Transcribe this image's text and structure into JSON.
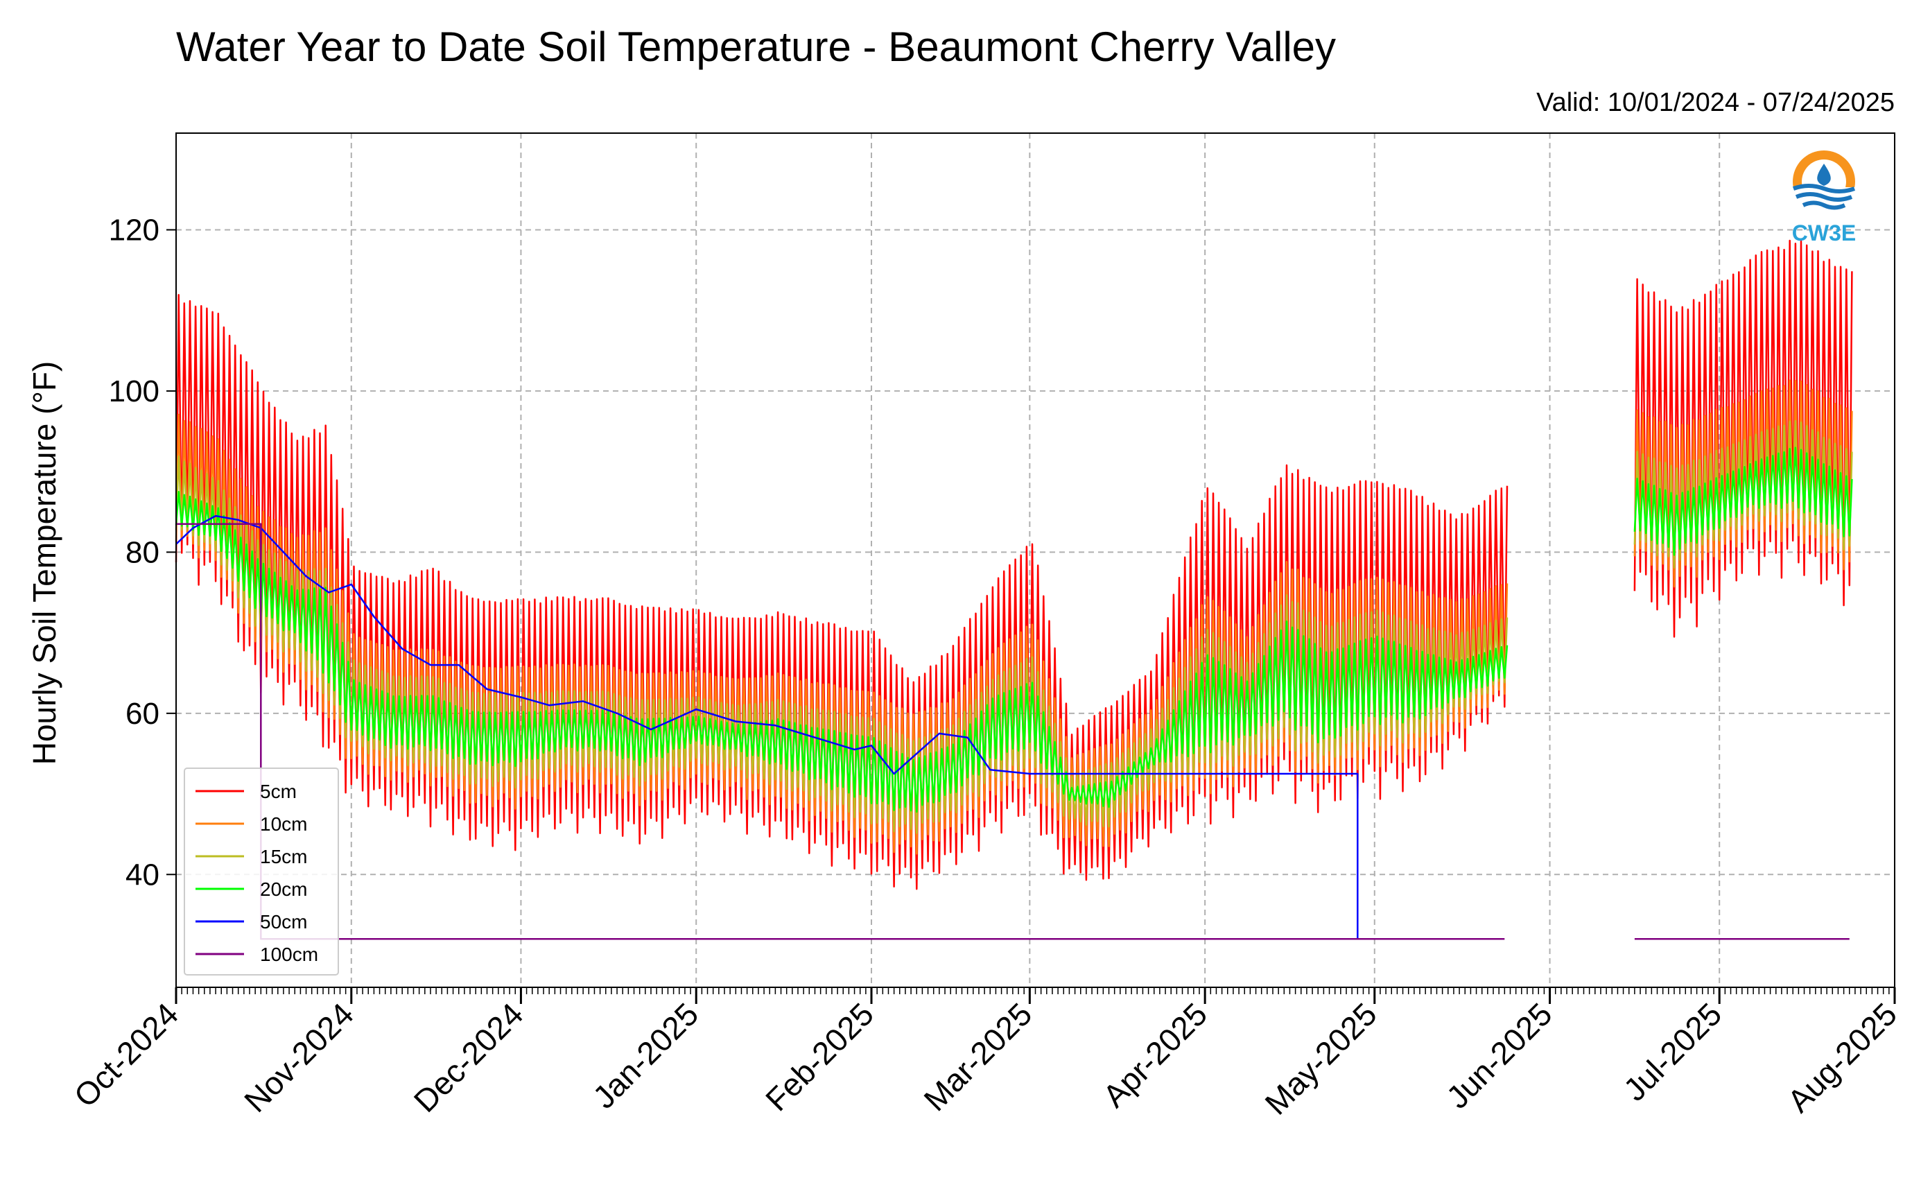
{
  "chart_data": {
    "type": "line",
    "title": "Water Year to Date Soil Temperature - Beaumont Cherry Valley",
    "subtitle": "Valid: 10/01/2024 - 07/24/2025",
    "xlabel": "",
    "ylabel": "Hourly Soil Temperature (°F)",
    "ylim": [
      26,
      132
    ],
    "xlim": [
      "2024-10-01",
      "2025-08-01"
    ],
    "yticks": [
      40,
      60,
      80,
      100,
      120
    ],
    "ytick_labels": [
      "40",
      "60",
      "80",
      "100",
      "120"
    ],
    "xtick_dates": [
      "2024-10-01",
      "2024-11-01",
      "2024-12-01",
      "2025-01-01",
      "2025-02-01",
      "2025-03-01",
      "2025-04-01",
      "2025-05-01",
      "2025-06-01",
      "2025-07-01",
      "2025-08-01"
    ],
    "xtick_labels": [
      "Oct-2024",
      "Nov-2024",
      "Dec-2024",
      "Jan-2025",
      "Feb-2025",
      "Mar-2025",
      "Apr-2025",
      "May-2025",
      "Jun-2025",
      "Jul-2025",
      "Aug-2025"
    ],
    "grid": true,
    "legend_position": "lower-left",
    "series": [
      {
        "name": "5cm",
        "color": "#ff0000",
        "segments": [
          {
            "start": "2024-10-01",
            "end": "2025-05-24",
            "dates": [
              "2024-10-01",
              "2024-10-08",
              "2024-10-15",
              "2024-10-22",
              "2024-10-27",
              "2024-11-01",
              "2024-11-08",
              "2024-11-15",
              "2024-11-22",
              "2024-12-01",
              "2024-12-08",
              "2024-12-15",
              "2024-12-22",
              "2025-01-01",
              "2025-01-08",
              "2025-01-15",
              "2025-01-22",
              "2025-02-01",
              "2025-02-08",
              "2025-02-15",
              "2025-02-22",
              "2025-03-01",
              "2025-03-08",
              "2025-03-15",
              "2025-03-22",
              "2025-04-01",
              "2025-04-08",
              "2025-04-15",
              "2025-04-22",
              "2025-05-01",
              "2025-05-08",
              "2025-05-15",
              "2025-05-24"
            ],
            "high": [
              116,
              114,
              106,
              98,
              101,
              82,
              80,
              82,
              78,
              78,
              78,
              78,
              77,
              76,
              75,
              76,
              75,
              74,
              67,
              72,
              80,
              86,
              60,
              64,
              68,
              94,
              85,
              96,
              93,
              94,
              92,
              88,
              92
            ],
            "low": [
              76,
              72,
              60,
              58,
              52,
              47,
              45,
              44,
              41,
              41,
              43,
              43,
              41,
              45,
              44,
              42,
              40,
              37,
              36,
              38,
              42,
              44,
              38,
              37,
              42,
              43,
              45,
              47,
              44,
              47,
              47,
              52,
              58
            ]
          },
          {
            "start": "2025-06-16",
            "end": "2025-07-24",
            "dates": [
              "2025-06-16",
              "2025-06-23",
              "2025-06-30",
              "2025-07-07",
              "2025-07-14",
              "2025-07-24"
            ],
            "high": [
              119,
              115,
              118,
              122,
              124,
              120
            ],
            "low": [
              72,
              66,
              70,
              74,
              74,
              70
            ]
          }
        ]
      },
      {
        "name": "10cm",
        "color": "#ff7f0e",
        "segments": [
          {
            "start": "2024-10-01",
            "end": "2025-05-24",
            "dates": [
              "2024-10-01",
              "2024-10-08",
              "2024-10-15",
              "2024-10-22",
              "2024-10-27",
              "2024-11-01",
              "2024-11-08",
              "2024-11-15",
              "2024-11-22",
              "2024-12-01",
              "2024-12-08",
              "2024-12-15",
              "2024-12-22",
              "2025-01-01",
              "2025-01-08",
              "2025-01-15",
              "2025-01-22",
              "2025-02-01",
              "2025-02-08",
              "2025-02-15",
              "2025-02-22",
              "2025-03-01",
              "2025-03-08",
              "2025-03-15",
              "2025-03-22",
              "2025-04-01",
              "2025-04-08",
              "2025-04-15",
              "2025-04-22",
              "2025-05-01",
              "2025-05-08",
              "2025-05-15",
              "2025-05-24"
            ],
            "high": [
              99,
              96,
              88,
              84,
              86,
              72,
              70,
              70,
              68,
              68,
              68,
              68,
              67,
              67,
              66,
              67,
              66,
              65,
              62,
              64,
              70,
              74,
              56,
              58,
              62,
              78,
              72,
              82,
              78,
              80,
              78,
              76,
              78
            ],
            "low": [
              80,
              77,
              66,
              63,
              58,
              52,
              50,
              50,
              47,
              47,
              49,
              49,
              47,
              50,
              49,
              47,
              45,
              42,
              41,
              43,
              47,
              49,
              43,
              42,
              47,
              48,
              50,
              52,
              49,
              52,
              52,
              56,
              61
            ]
          },
          {
            "start": "2025-06-16",
            "end": "2025-07-24",
            "dates": [
              "2025-06-16",
              "2025-06-23",
              "2025-06-30",
              "2025-07-07",
              "2025-07-14",
              "2025-07-24"
            ],
            "high": [
              100,
              98,
              100,
              102,
              104,
              100
            ],
            "low": [
              78,
              74,
              77,
              80,
              80,
              76
            ]
          }
        ]
      },
      {
        "name": "15cm",
        "color": "#bcbd22",
        "segments": [
          {
            "start": "2024-10-01",
            "end": "2025-05-24",
            "dates": [
              "2024-10-01",
              "2024-10-08",
              "2024-10-15",
              "2024-10-22",
              "2024-10-27",
              "2024-11-01",
              "2024-11-08",
              "2024-11-15",
              "2024-11-22",
              "2024-12-01",
              "2024-12-08",
              "2024-12-15",
              "2024-12-22",
              "2025-01-01",
              "2025-01-08",
              "2025-01-15",
              "2025-01-22",
              "2025-02-01",
              "2025-02-08",
              "2025-02-15",
              "2025-02-22",
              "2025-03-01",
              "2025-03-08",
              "2025-03-15",
              "2025-03-22",
              "2025-04-01",
              "2025-04-08",
              "2025-04-15",
              "2025-04-22",
              "2025-05-01",
              "2025-05-08",
              "2025-05-15",
              "2025-05-24"
            ],
            "high": [
              93,
              90,
              83,
              79,
              80,
              68,
              66,
              66,
              64,
              64,
              64,
              64,
              63,
              63,
              62,
              63,
              62,
              61,
              58,
              60,
              66,
              69,
              53,
              55,
              59,
              73,
              68,
              77,
              73,
              75,
              73,
              71,
              73
            ],
            "low": [
              82,
              79,
              69,
              66,
              61,
              55,
              53,
              52,
              50,
              50,
              52,
              52,
              50,
              53,
              52,
              50,
              48,
              45,
              44,
              46,
              50,
              52,
              46,
              45,
              50,
              51,
              53,
              55,
              52,
              55,
              55,
              59,
              63
            ]
          },
          {
            "start": "2025-06-16",
            "end": "2025-07-24",
            "dates": [
              "2025-06-16",
              "2025-06-23",
              "2025-06-30",
              "2025-07-07",
              "2025-07-14",
              "2025-07-24"
            ],
            "high": [
              94,
              92,
              94,
              96,
              98,
              94
            ],
            "low": [
              80,
              77,
              80,
              83,
              83,
              79
            ]
          }
        ]
      },
      {
        "name": "20cm",
        "color": "#00ff00",
        "segments": [
          {
            "start": "2024-10-01",
            "end": "2025-05-24",
            "dates": [
              "2024-10-01",
              "2024-10-08",
              "2024-10-15",
              "2024-10-22",
              "2024-10-27",
              "2024-11-01",
              "2024-11-08",
              "2024-11-15",
              "2024-11-22",
              "2024-12-01",
              "2024-12-08",
              "2024-12-15",
              "2024-12-22",
              "2025-01-01",
              "2025-01-08",
              "2025-01-15",
              "2025-01-22",
              "2025-02-01",
              "2025-02-08",
              "2025-02-15",
              "2025-02-22",
              "2025-03-01",
              "2025-03-08",
              "2025-03-15",
              "2025-03-22",
              "2025-04-01",
              "2025-04-08",
              "2025-04-15",
              "2025-04-22",
              "2025-05-01",
              "2025-05-08",
              "2025-05-15",
              "2025-05-24"
            ],
            "high": [
              88,
              86,
              80,
              76,
              77,
              65,
              63,
              63,
              61,
              61,
              61,
              61,
              60,
              60,
              59,
              60,
              59,
              58,
              55,
              57,
              63,
              65,
              51,
              52,
              56,
              69,
              65,
              73,
              69,
              71,
              69,
              67,
              69
            ],
            "low": [
              83,
              81,
              72,
              69,
              64,
              57,
              55,
              55,
              53,
              53,
              55,
              55,
              53,
              56,
              55,
              53,
              51,
              48,
              47,
              49,
              53,
              55,
              49,
              48,
              53,
              54,
              56,
              58,
              55,
              58,
              58,
              61,
              64
            ]
          },
          {
            "start": "2025-06-16",
            "end": "2025-07-24",
            "dates": [
              "2025-06-16",
              "2025-06-23",
              "2025-06-30",
              "2025-07-07",
              "2025-07-14",
              "2025-07-24"
            ],
            "high": [
              90,
              88,
              90,
              92,
              94,
              90
            ],
            "low": [
              82,
              79,
              82,
              85,
              85,
              81
            ]
          }
        ]
      },
      {
        "name": "50cm",
        "color": "#0000ff",
        "segments": [
          {
            "start": "2024-10-01",
            "end": "2025-04-28",
            "dates": [
              "2024-10-01",
              "2024-10-04",
              "2024-10-08",
              "2024-10-12",
              "2024-10-16",
              "2024-10-20",
              "2024-10-24",
              "2024-10-28",
              "2024-11-01",
              "2024-11-05",
              "2024-11-10",
              "2024-11-15",
              "2024-11-20",
              "2024-11-25",
              "2024-12-01",
              "2024-12-06",
              "2024-12-12",
              "2024-12-18",
              "2024-12-24",
              "2025-01-01",
              "2025-01-08",
              "2025-01-15",
              "2025-01-22",
              "2025-01-29",
              "2025-02-01",
              "2025-02-05",
              "2025-02-09",
              "2025-02-13",
              "2025-02-18",
              "2025-02-22",
              "2025-03-01",
              "2025-04-15",
              "2025-04-28",
              "2025-04-28"
            ],
            "values": [
              81,
              83,
              84.5,
              84,
              83,
              80,
              77,
              75,
              76,
              72,
              68,
              66,
              66,
              63,
              62,
              61,
              61.5,
              60,
              58,
              60.5,
              59,
              58.5,
              57,
              55.5,
              56,
              52.5,
              55,
              57.5,
              57,
              53,
              52.5,
              52.5,
              52.5,
              32
            ]
          }
        ]
      },
      {
        "name": "100cm",
        "color": "#800080",
        "segments": [
          {
            "start": "2024-10-01",
            "end": "2025-05-24",
            "dates": [
              "2024-10-01",
              "2024-10-16",
              "2024-10-16",
              "2025-05-24"
            ],
            "values": [
              83.5,
              83.5,
              32,
              32
            ]
          },
          {
            "start": "2025-06-16",
            "end": "2025-07-24",
            "dates": [
              "2025-06-16",
              "2025-07-24"
            ],
            "values": [
              32,
              32
            ]
          }
        ]
      }
    ]
  },
  "logo": {
    "text": "CW3E"
  }
}
